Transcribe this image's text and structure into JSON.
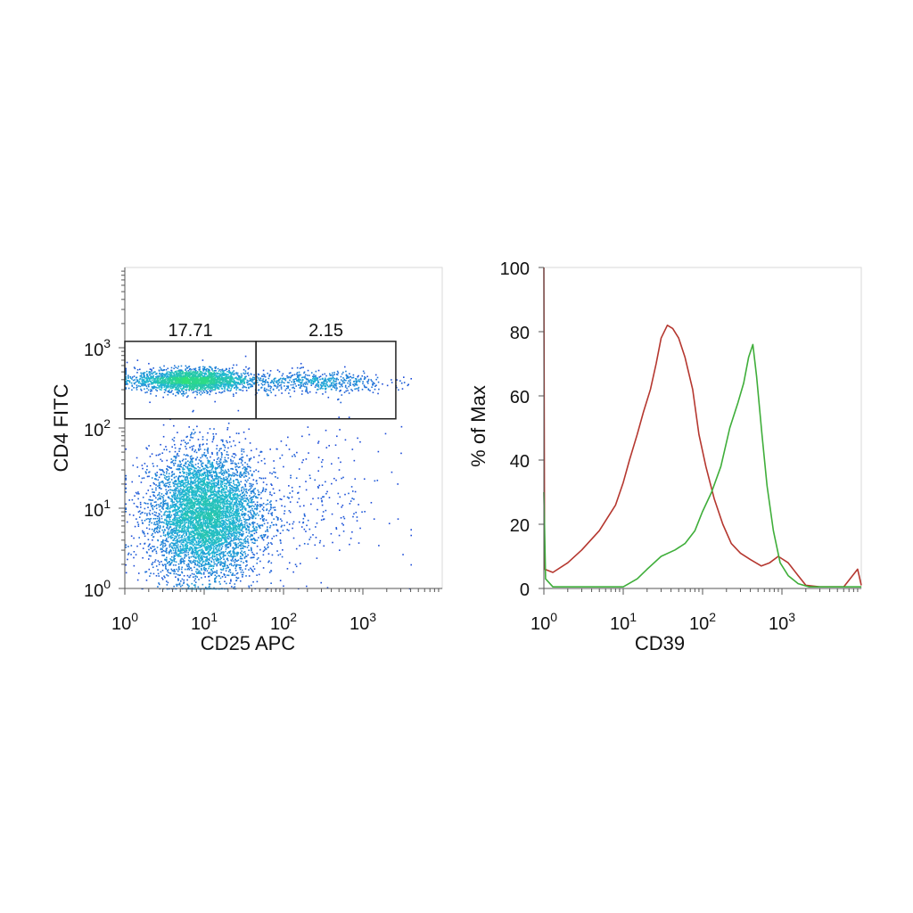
{
  "chart_data": [
    {
      "type": "scatter",
      "xlabel": "CD25 APC",
      "ylabel": "CD4 FITC",
      "x_scale": "log",
      "y_scale": "log",
      "xlim": [
        1,
        10000
      ],
      "ylim": [
        1,
        10000
      ],
      "x_ticks": [
        {
          "base": "10",
          "exp": "0",
          "value": 1
        },
        {
          "base": "10",
          "exp": "1",
          "value": 10
        },
        {
          "base": "10",
          "exp": "2",
          "value": 100
        },
        {
          "base": "10",
          "exp": "3",
          "value": 1000
        }
      ],
      "y_ticks": [
        {
          "base": "10",
          "exp": "0",
          "value": 1
        },
        {
          "base": "10",
          "exp": "1",
          "value": 10
        },
        {
          "base": "10",
          "exp": "2",
          "value": 100
        },
        {
          "base": "10",
          "exp": "3",
          "value": 1000
        }
      ],
      "gates": [
        {
          "label": "17.71",
          "x_range": [
            1,
            45
          ],
          "y_range": [
            130,
            1200
          ]
        },
        {
          "label": "2.15",
          "x_range": [
            45,
            2600
          ],
          "y_range": [
            130,
            1200
          ]
        }
      ],
      "populations": [
        {
          "x_center": 10,
          "y_center": 8,
          "x_spread_decades": 0.35,
          "y_spread_decades": 0.4,
          "weight": 0.62
        },
        {
          "x_center": 7,
          "y_center": 400,
          "x_spread_decades": 0.35,
          "y_spread_decades": 0.07,
          "weight": 0.24
        },
        {
          "x_center": 250,
          "y_center": 380,
          "x_spread_decades": 0.45,
          "y_spread_decades": 0.07,
          "weight": 0.06
        },
        {
          "x_center": 200,
          "y_center": 12,
          "x_spread_decades": 0.5,
          "y_spread_decades": 0.45,
          "weight": 0.03
        }
      ],
      "colors": {
        "low": "#1a2fd8",
        "mid": "#1fb4d6",
        "high": "#2fe07a",
        "gate": "#222222"
      }
    },
    {
      "type": "line",
      "xlabel": "CD39",
      "ylabel": "% of Max",
      "x_scale": "log",
      "xlim": [
        1,
        10000
      ],
      "ylim": [
        0,
        100
      ],
      "x_ticks": [
        {
          "base": "10",
          "exp": "0",
          "value": 1
        },
        {
          "base": "10",
          "exp": "1",
          "value": 10
        },
        {
          "base": "10",
          "exp": "2",
          "value": 100
        },
        {
          "base": "10",
          "exp": "3",
          "value": 1000
        }
      ],
      "y_ticks": [
        "0",
        "20",
        "40",
        "60",
        "80",
        "100"
      ],
      "series": [
        {
          "color": "#b5372f",
          "points": [
            [
              1,
              100
            ],
            [
              1.02,
              6
            ],
            [
              1.3,
              5
            ],
            [
              2,
              8
            ],
            [
              3,
              12
            ],
            [
              5,
              18
            ],
            [
              8,
              26
            ],
            [
              10,
              33
            ],
            [
              12,
              40
            ],
            [
              15,
              48
            ],
            [
              18,
              55
            ],
            [
              22,
              62
            ],
            [
              26,
              70
            ],
            [
              30,
              78
            ],
            [
              36,
              82
            ],
            [
              42,
              81
            ],
            [
              50,
              78
            ],
            [
              60,
              72
            ],
            [
              75,
              62
            ],
            [
              90,
              48
            ],
            [
              110,
              38
            ],
            [
              140,
              28
            ],
            [
              180,
              20
            ],
            [
              230,
              14
            ],
            [
              300,
              11
            ],
            [
              400,
              9
            ],
            [
              550,
              7
            ],
            [
              700,
              8
            ],
            [
              900,
              10
            ],
            [
              1200,
              8
            ],
            [
              1600,
              4
            ],
            [
              2000,
              1
            ],
            [
              3000,
              0.5
            ],
            [
              6000,
              0.5
            ],
            [
              9000,
              6
            ],
            [
              10000,
              1
            ]
          ]
        },
        {
          "color": "#3fae3a",
          "points": [
            [
              1,
              30
            ],
            [
              1.05,
              3
            ],
            [
              1.3,
              0.5
            ],
            [
              10,
              0.5
            ],
            [
              15,
              3
            ],
            [
              20,
              6
            ],
            [
              30,
              10
            ],
            [
              45,
              12
            ],
            [
              60,
              14
            ],
            [
              80,
              18
            ],
            [
              100,
              24
            ],
            [
              130,
              30
            ],
            [
              170,
              38
            ],
            [
              220,
              50
            ],
            [
              280,
              58
            ],
            [
              330,
              64
            ],
            [
              380,
              72
            ],
            [
              430,
              76
            ],
            [
              480,
              66
            ],
            [
              560,
              48
            ],
            [
              650,
              32
            ],
            [
              780,
              18
            ],
            [
              950,
              8
            ],
            [
              1200,
              4
            ],
            [
              1600,
              1.5
            ],
            [
              2200,
              0.5
            ],
            [
              10000,
              0.5
            ]
          ]
        }
      ]
    }
  ]
}
